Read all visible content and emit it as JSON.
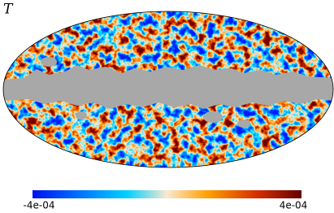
{
  "title": "T",
  "colorbar": {
    "lim": [
      -0.0004,
      0.0004
    ],
    "ticks": [
      {
        "value": -0.0004,
        "label": "-4e-04"
      },
      {
        "value": 0.0004,
        "label": "4e-04"
      }
    ]
  }
}
